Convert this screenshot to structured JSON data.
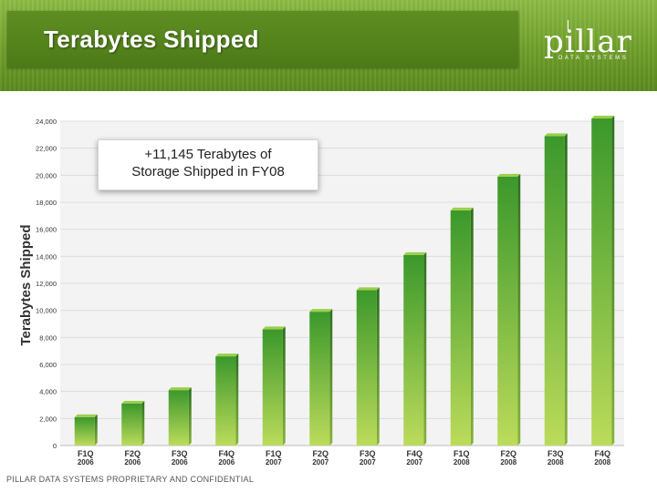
{
  "header": {
    "title": "Terabytes Shipped",
    "logo_word": "pillar",
    "logo_sub": "DATA SYSTEMS"
  },
  "callout": {
    "line1": "+11,145 Terabytes of",
    "line2": "Storage Shipped in FY08"
  },
  "footer": {
    "text": "PILLAR DATA SYSTEMS PROPRIETARY AND CONFIDENTIAL"
  },
  "colors": {
    "bar_top": "#3d9a2c",
    "bar_bottom": "#b9d958",
    "bar_side": "#2f7a20",
    "bar_cap": "#9ccf4a",
    "header": "#7aab33"
  },
  "chart_data": {
    "type": "bar",
    "title": "",
    "xlabel": "",
    "ylabel": "Terabytes Shipped",
    "ylim": [
      0,
      24000
    ],
    "yticks": [
      "0",
      "2,000",
      "4,000",
      "6,000",
      "8,000",
      "10,000",
      "12,000",
      "14,000",
      "16,000",
      "18,000",
      "20,000",
      "22,000",
      "24,000"
    ],
    "grid": true,
    "categories": [
      [
        "F1Q",
        "2006"
      ],
      [
        "F2Q",
        "2006"
      ],
      [
        "F3Q",
        "2006"
      ],
      [
        "F4Q",
        "2006"
      ],
      [
        "F1Q",
        "2007"
      ],
      [
        "F2Q",
        "2007"
      ],
      [
        "F3Q",
        "2007"
      ],
      [
        "F4Q",
        "2007"
      ],
      [
        "F1Q",
        "2008"
      ],
      [
        "F2Q",
        "2008"
      ],
      [
        "F3Q",
        "2008"
      ],
      [
        "F4Q",
        "2008"
      ]
    ],
    "values": [
      2100,
      3100,
      4100,
      6600,
      8600,
      9900,
      11500,
      14100,
      17400,
      19900,
      22900,
      24200
    ]
  }
}
